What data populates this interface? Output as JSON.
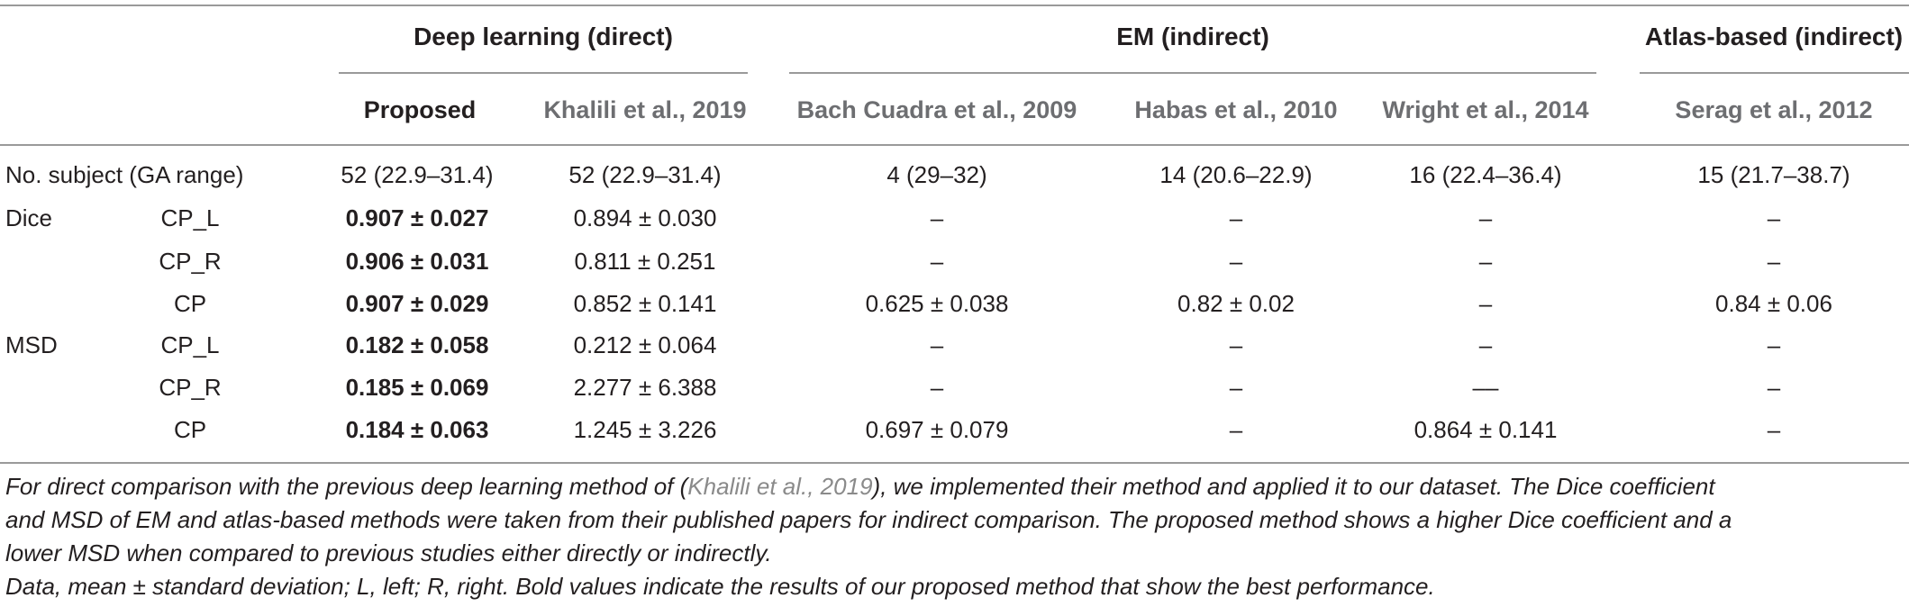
{
  "table": {
    "groups": [
      "Deep learning (direct)",
      "EM (indirect)",
      "Atlas-based (indirect)"
    ],
    "subheaders": [
      "Proposed",
      "Khalili et al., 2019",
      "Bach Cuadra et al., 2009",
      "Habas et al., 2010",
      "Wright et al., 2014",
      "Serag et al., 2012"
    ],
    "row_subject": {
      "label": "No. subject (GA range)",
      "values": [
        "52 (22.9–31.4)",
        "52 (22.9–31.4)",
        "4 (29–32)",
        "14 (20.6–22.9)",
        "16 (22.4–36.4)",
        "15 (21.7–38.7)"
      ]
    },
    "rows": [
      {
        "metric": "Dice",
        "region": "CP_L",
        "values": [
          "0.907 ± 0.027",
          "0.894 ± 0.030",
          "–",
          "–",
          "–",
          "–"
        ]
      },
      {
        "metric": "",
        "region": "CP_R",
        "values": [
          "0.906 ± 0.031",
          "0.811 ± 0.251",
          "–",
          "–",
          "–",
          "–"
        ]
      },
      {
        "metric": "",
        "region": "CP",
        "values": [
          "0.907 ± 0.029",
          "0.852 ± 0.141",
          "0.625 ± 0.038",
          "0.82 ± 0.02",
          "–",
          "0.84 ± 0.06"
        ]
      },
      {
        "metric": "MSD",
        "region": "CP_L",
        "values": [
          "0.182 ± 0.058",
          "0.212 ± 0.064",
          "–",
          "–",
          "–",
          "–"
        ]
      },
      {
        "metric": "",
        "region": "CP_R",
        "values": [
          "0.185 ± 0.069",
          "2.277 ± 6.388",
          "–",
          "–",
          "––",
          "–"
        ]
      },
      {
        "metric": "",
        "region": "CP",
        "values": [
          "0.184 ± 0.063",
          "1.245 ± 3.226",
          "0.697 ± 0.079",
          "–",
          "0.864 ± 0.141",
          "–"
        ]
      }
    ]
  },
  "footnote": {
    "line1_pre": "For direct comparison with the previous deep learning method of (",
    "line1_cite": "Khalili et al., 2019",
    "line1_post": "), we implemented their method and applied it to our dataset. The Dice coefficient",
    "line2": "and MSD of EM and atlas-based methods were taken from their published papers for indirect comparison. The proposed method shows a higher Dice coefficient and a",
    "line3": "lower MSD when compared to previous studies either directly or indirectly.",
    "line4": "Data, mean ± standard deviation; L, left; R, right. Bold values indicate the results of our proposed method that show the best performance."
  }
}
